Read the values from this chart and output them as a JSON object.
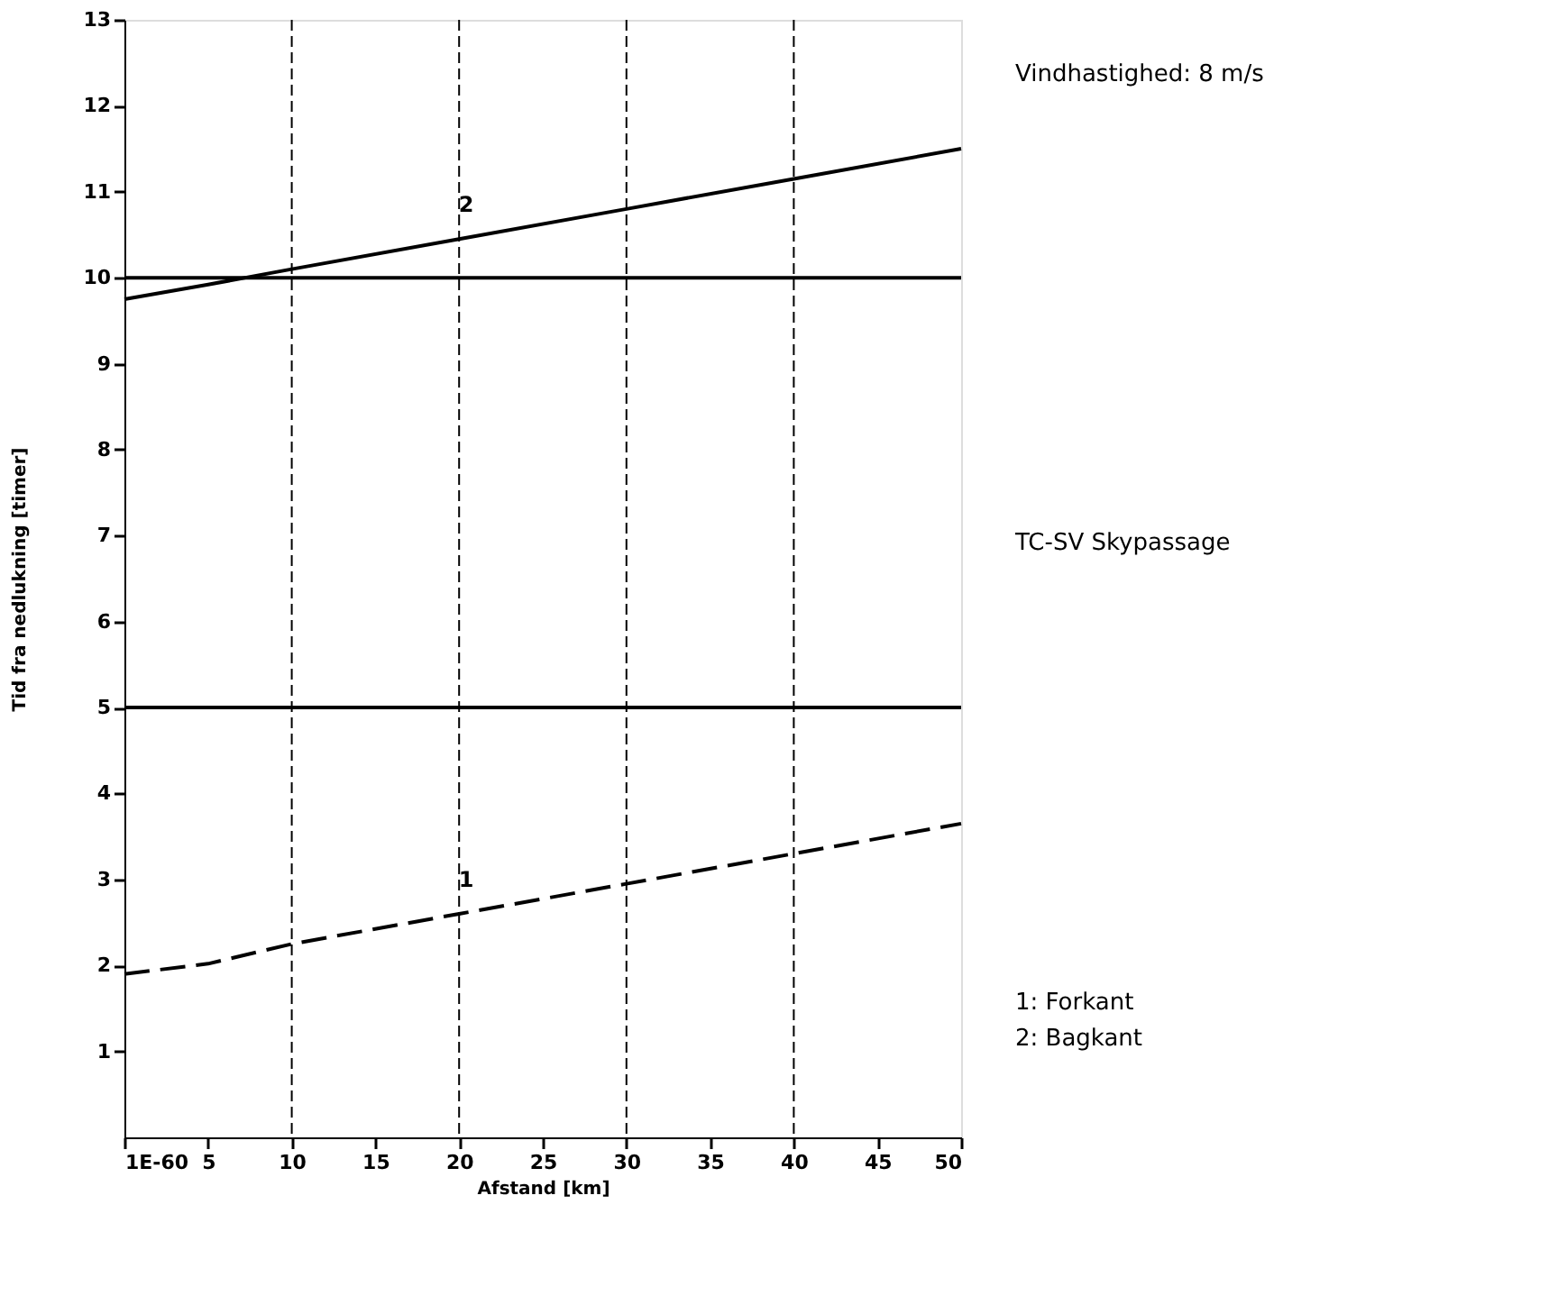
{
  "chart_data": {
    "type": "line",
    "xlabel": "Afstand [km]",
    "ylabel": "Tid fra nedlukning [timer]",
    "x": [
      0,
      5,
      10,
      20,
      30,
      40,
      50
    ],
    "series": [
      {
        "color": "#000000",
        "values": [
          1.9,
          2.02,
          2.25,
          2.6,
          2.95,
          3.3,
          3.65
        ],
        "line_style": "dashed"
      },
      {
        "color": "#000000",
        "values": [
          9.75,
          9.92,
          10.1,
          10.45,
          10.8,
          11.15,
          11.5
        ],
        "line_style": "solid"
      }
    ],
    "xlim": [
      0,
      50
    ],
    "ylim": [
      0,
      13
    ],
    "xticks": [
      {
        "value": 0,
        "label": "1E-60"
      },
      5,
      10,
      15,
      20,
      25,
      30,
      35,
      40,
      45,
      50
    ],
    "yticks": [
      1,
      2,
      3,
      4,
      5,
      6,
      7,
      8,
      9,
      10,
      11,
      12,
      13
    ],
    "marker": "none",
    "ref_lines": [
      {
        "axis": "y",
        "value": 5
      },
      {
        "axis": "y",
        "value": 10
      },
      {
        "axis": "x",
        "value": 10,
        "line_style": "dashed"
      },
      {
        "axis": "x",
        "value": 20,
        "line_style": "dashed"
      },
      {
        "axis": "x",
        "value": 30,
        "line_style": "dashed"
      },
      {
        "axis": "x",
        "value": 40,
        "line_style": "dashed"
      }
    ],
    "annotations": [
      "1",
      "2",
      "Vindhastighed: 8 m/s",
      "TC-SV Skypassage",
      "1: Forkant",
      "2: Bagkant"
    ]
  }
}
